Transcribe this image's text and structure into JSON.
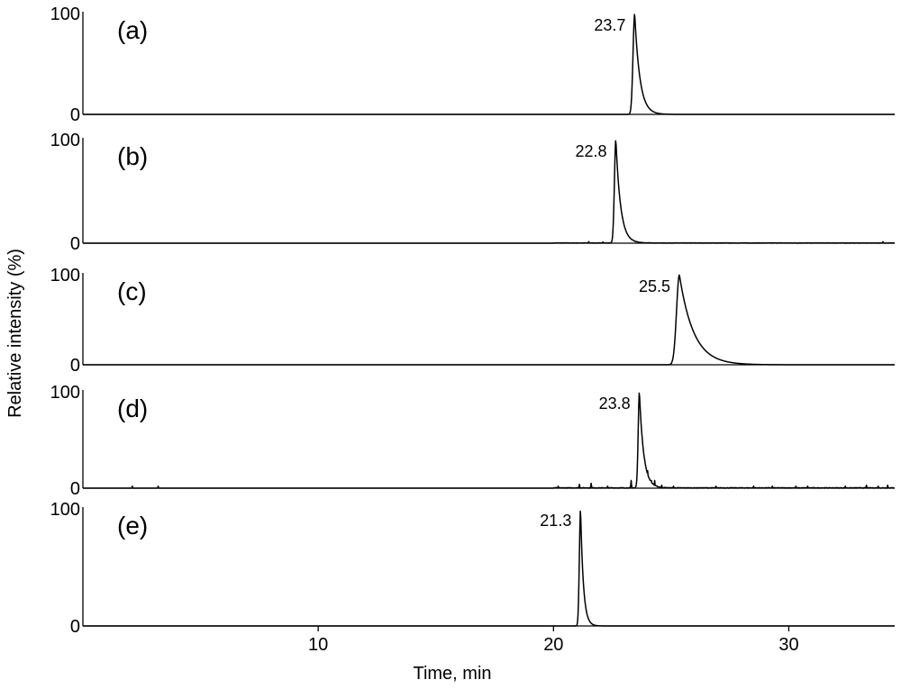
{
  "chart_data": {
    "type": "line",
    "xlabel": "Time, min",
    "ylabel": "Relative intensity (%)",
    "xlim": [
      0,
      34.5
    ],
    "ylim": [
      0,
      100
    ],
    "x_ticks": [
      10,
      20,
      30
    ],
    "y_ticks": [
      0,
      100
    ],
    "grid": false,
    "panels": [
      {
        "label": "(a)",
        "peak_label": "23.7",
        "peak_x": 23.45,
        "peak_height": 100,
        "rise_width": 0.07,
        "tail_width": 0.22,
        "noise": "none",
        "noise_spikes": []
      },
      {
        "label": "(b)",
        "peak_label": "22.8",
        "peak_x": 22.65,
        "peak_height": 100,
        "rise_width": 0.06,
        "tail_width": 0.2,
        "noise": "low",
        "noise_spikes": [
          {
            "x": 21.5,
            "y": 1.5
          },
          {
            "x": 22.1,
            "y": 1.2
          },
          {
            "x": 23.2,
            "y": 4
          },
          {
            "x": 23.4,
            "y": 2
          },
          {
            "x": 34.0,
            "y": 1.5
          }
        ]
      },
      {
        "label": "(c)",
        "peak_label": "25.5",
        "peak_x": 25.35,
        "peak_height": 100,
        "rise_width": 0.12,
        "tail_width": 0.6,
        "noise": "none",
        "noise_spikes": []
      },
      {
        "label": "(d)",
        "peak_label": "23.8",
        "peak_x": 23.65,
        "peak_height": 100,
        "rise_width": 0.05,
        "tail_width": 0.18,
        "noise": "high",
        "noise_spikes": [
          {
            "x": 2.1,
            "y": 2
          },
          {
            "x": 3.2,
            "y": 2
          },
          {
            "x": 20.2,
            "y": 2
          },
          {
            "x": 21.1,
            "y": 4
          },
          {
            "x": 21.6,
            "y": 5
          },
          {
            "x": 22.3,
            "y": 2
          },
          {
            "x": 23.3,
            "y": 8
          },
          {
            "x": 23.9,
            "y": 25
          },
          {
            "x": 24.0,
            "y": 18
          },
          {
            "x": 24.15,
            "y": 12
          },
          {
            "x": 24.3,
            "y": 8
          },
          {
            "x": 24.6,
            "y": 3
          },
          {
            "x": 25.1,
            "y": 2
          },
          {
            "x": 26.9,
            "y": 2
          },
          {
            "x": 28.5,
            "y": 2
          },
          {
            "x": 29.3,
            "y": 2
          },
          {
            "x": 30.3,
            "y": 2
          },
          {
            "x": 30.8,
            "y": 2
          },
          {
            "x": 32.4,
            "y": 2
          },
          {
            "x": 33.3,
            "y": 3
          },
          {
            "x": 33.8,
            "y": 2
          },
          {
            "x": 34.2,
            "y": 3
          }
        ]
      },
      {
        "label": "(e)",
        "peak_label": "21.3",
        "peak_x": 21.15,
        "peak_height": 100,
        "rise_width": 0.05,
        "tail_width": 0.12,
        "noise": "none",
        "noise_spikes": []
      }
    ]
  }
}
